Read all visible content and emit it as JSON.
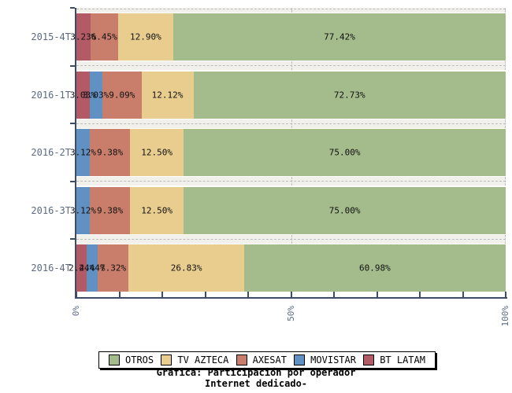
{
  "chart_data": {
    "type": "stacked-bar-horizontal",
    "title_line1": "Gráfica: Participación por operador",
    "title_line2": "Internet dedicado-",
    "categories": [
      "2015-4T",
      "2016-1T",
      "2016-2T",
      "2016-3T",
      "2016-4T"
    ],
    "series": [
      {
        "name": "BT LATAM",
        "color": "#b25a66",
        "values": [
          3.23,
          3.03,
          0,
          0,
          2.44
        ]
      },
      {
        "name": "MOVISTAR",
        "color": "#6190c2",
        "values": [
          0,
          3.03,
          3.12,
          3.12,
          2.44
        ]
      },
      {
        "name": "AXESAT",
        "color": "#c97e6b",
        "values": [
          6.45,
          9.09,
          9.38,
          9.38,
          7.32
        ]
      },
      {
        "name": "TV AZTECA",
        "color": "#e9cd8f",
        "values": [
          12.9,
          12.12,
          12.5,
          12.5,
          26.83
        ]
      },
      {
        "name": "OTROS",
        "color": "#a4bc8b",
        "values": [
          77.42,
          72.73,
          75.0,
          75.0,
          60.98
        ]
      }
    ],
    "legend_order": [
      "OTROS",
      "TV AZTECA",
      "AXESAT",
      "MOVISTAR",
      "BT LATAM"
    ],
    "value_suffix": "%",
    "x_axis": {
      "range": [
        0,
        100
      ],
      "labeled_ticks": [
        {
          "label": "0%",
          "value": 0
        },
        {
          "label": "50%",
          "value": 50
        },
        {
          "label": "100%",
          "value": 100
        }
      ],
      "minor_tick_step": 10
    },
    "grid": "dashed-between-bars"
  },
  "colors": {
    "axis": "#3e4d63",
    "category_label": "#5c6b82",
    "grid_strip": "#f1f0ea",
    "grid_dash": "#bdbdbd",
    "bar_label": "#111111",
    "legend_border": "#000000",
    "background": "#ffffff"
  }
}
